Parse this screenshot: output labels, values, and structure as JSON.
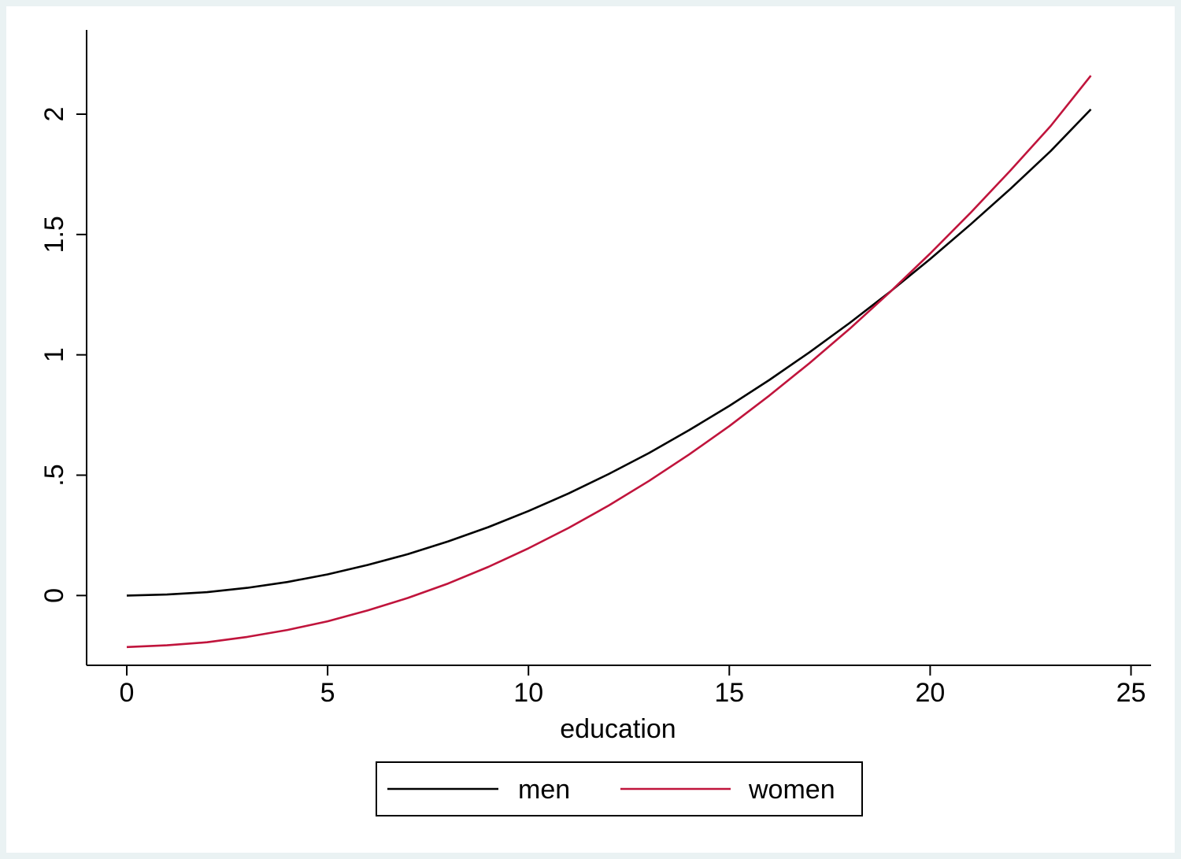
{
  "chart_data": {
    "type": "line",
    "title": "",
    "xlabel": "education",
    "ylabel": "",
    "xlim": [
      -1,
      25.5
    ],
    "ylim": [
      -0.29,
      2.35
    ],
    "xticks": [
      0,
      5,
      10,
      15,
      20,
      25
    ],
    "xtick_labels": [
      "0",
      "5",
      "10",
      "15",
      "20",
      "25"
    ],
    "yticks": [
      0,
      0.5,
      1,
      1.5,
      2
    ],
    "ytick_labels": [
      "0",
      ".5",
      "1",
      "1.5",
      "2"
    ],
    "grid": false,
    "legend_position": "bottom",
    "x": [
      0,
      1,
      2,
      3,
      4,
      5,
      6,
      7,
      8,
      9,
      10,
      11,
      12,
      13,
      14,
      15,
      16,
      17,
      18,
      19,
      20,
      21,
      22,
      23,
      24
    ],
    "series": [
      {
        "name": "men",
        "color": "#000000",
        "values": [
          0.0,
          0.004,
          0.014,
          0.032,
          0.056,
          0.088,
          0.127,
          0.172,
          0.225,
          0.284,
          0.351,
          0.424,
          0.505,
          0.592,
          0.687,
          0.788,
          0.896,
          1.011,
          1.133,
          1.262,
          1.398,
          1.541,
          1.69,
          1.847,
          2.02
        ]
      },
      {
        "name": "women",
        "color": "#c0143c",
        "values": [
          -0.214,
          -0.207,
          -0.194,
          -0.172,
          -0.143,
          -0.107,
          -0.062,
          -0.01,
          0.05,
          0.119,
          0.196,
          0.281,
          0.374,
          0.476,
          0.586,
          0.704,
          0.831,
          0.966,
          1.109,
          1.261,
          1.421,
          1.589,
          1.766,
          1.951,
          2.16
        ]
      }
    ]
  }
}
